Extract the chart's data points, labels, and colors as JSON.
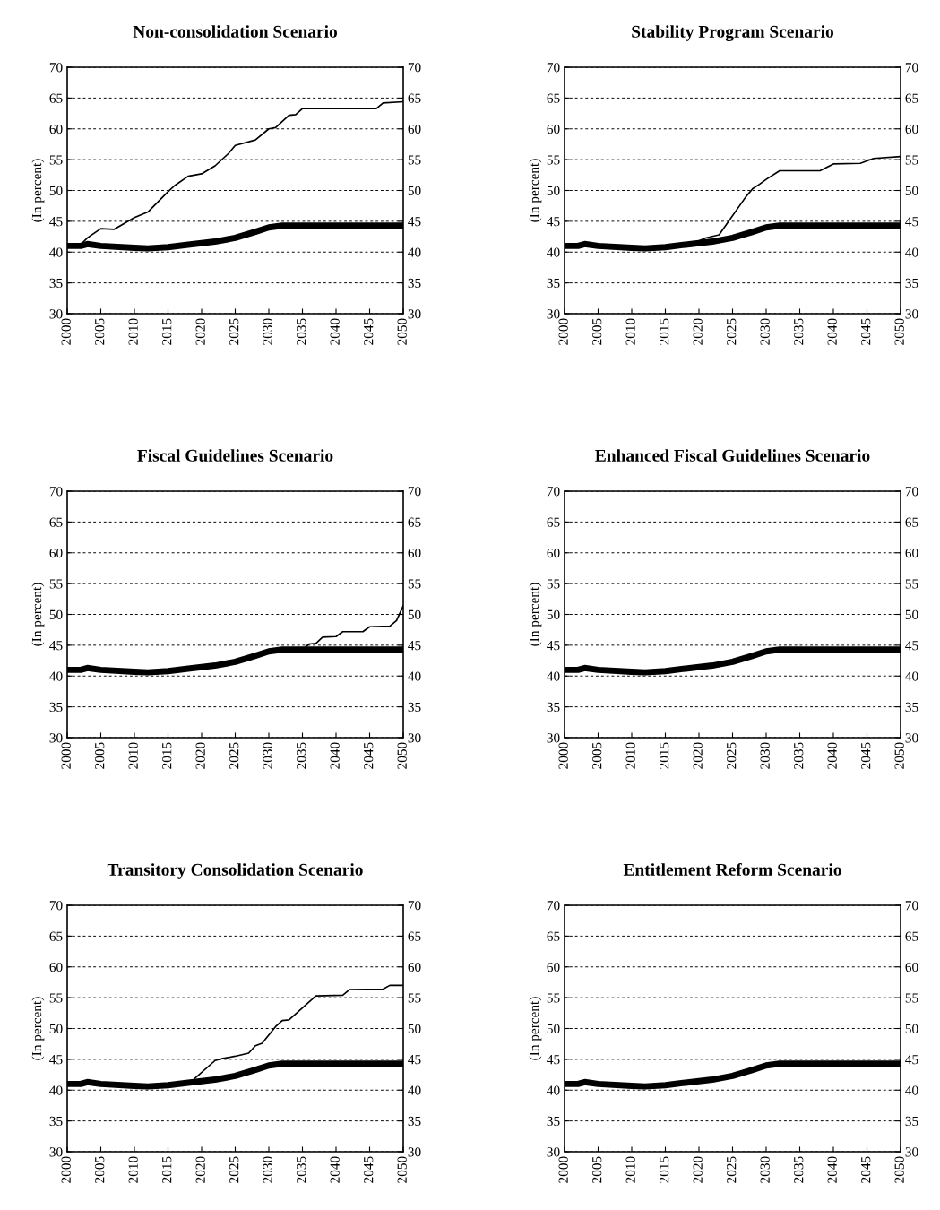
{
  "chart_data": [
    {
      "type": "line",
      "title": "Non-consolidation Scenario",
      "ylabel": "(In percent)",
      "xlim": [
        2000,
        2050
      ],
      "xticks": [
        2000,
        2005,
        2010,
        2015,
        2020,
        2025,
        2030,
        2035,
        2040,
        2045,
        2050
      ],
      "ylim": [
        30,
        70
      ],
      "yticks": [
        30,
        35,
        40,
        45,
        50,
        55,
        60,
        65,
        70
      ],
      "y2lim": [
        30,
        70
      ],
      "y2ticks": [
        30,
        35,
        40,
        45,
        50,
        55,
        60,
        65,
        70
      ],
      "grid": "y",
      "series": [
        {
          "color": "#000000",
          "x": [
            2000,
            2002,
            2003,
            2005,
            2010,
            2012,
            2015,
            2018,
            2022,
            2025,
            2028,
            2030,
            2032,
            2050
          ],
          "values": [
            41,
            41,
            41.3,
            41,
            40.7,
            40.6,
            40.8,
            41.2,
            41.7,
            42.3,
            43.3,
            44,
            44.3,
            44.3
          ]
        },
        {
          "color": "#000000",
          "x": [
            2000,
            2002,
            2003,
            2005,
            2007,
            2010,
            2012,
            2015,
            2016,
            2018,
            2020,
            2022,
            2024,
            2025,
            2028,
            2030,
            2031,
            2033,
            2034,
            2035,
            2046,
            2047,
            2050
          ],
          "values": [
            41,
            41.2,
            42.3,
            43.8,
            43.7,
            45.6,
            46.5,
            49.8,
            50.8,
            52.3,
            52.7,
            54,
            56,
            57.3,
            58.2,
            60,
            60.2,
            62.2,
            62.3,
            63.3,
            63.3,
            64.2,
            64.4
          ]
        }
      ]
    },
    {
      "type": "line",
      "title": "Stability Program Scenario",
      "ylabel": "(In percent)",
      "xlim": [
        2000,
        2050
      ],
      "xticks": [
        2000,
        2005,
        2010,
        2015,
        2020,
        2025,
        2030,
        2035,
        2040,
        2045,
        2050
      ],
      "ylim": [
        30,
        70
      ],
      "yticks": [
        30,
        35,
        40,
        45,
        50,
        55,
        60,
        65,
        70
      ],
      "y2lim": [
        30,
        70
      ],
      "y2ticks": [
        30,
        35,
        40,
        45,
        50,
        55,
        60,
        65,
        70
      ],
      "grid": "y",
      "series": [
        {
          "color": "#000000",
          "x": [
            2000,
            2002,
            2003,
            2005,
            2010,
            2012,
            2015,
            2018,
            2022,
            2025,
            2028,
            2030,
            2032,
            2050
          ],
          "values": [
            41,
            41,
            41.3,
            41,
            40.7,
            40.6,
            40.8,
            41.2,
            41.7,
            42.3,
            43.3,
            44,
            44.3,
            44.3
          ]
        },
        {
          "color": "#000000",
          "x": [
            2020,
            2021,
            2023,
            2027,
            2028,
            2029,
            2030,
            2032,
            2038,
            2040,
            2044,
            2046,
            2050
          ],
          "values": [
            41.8,
            42.3,
            42.8,
            49,
            50.3,
            51,
            51.8,
            53.2,
            53.2,
            54.3,
            54.4,
            55.2,
            55.5
          ]
        }
      ]
    },
    {
      "type": "line",
      "title": "Fiscal Guidelines Scenario",
      "ylabel": "(In percent)",
      "xlim": [
        2000,
        2050
      ],
      "xticks": [
        2000,
        2005,
        2010,
        2015,
        2020,
        2025,
        2030,
        2035,
        2040,
        2045,
        2050
      ],
      "ylim": [
        30,
        70
      ],
      "yticks": [
        30,
        35,
        40,
        45,
        50,
        55,
        60,
        65,
        70
      ],
      "y2lim": [
        30,
        70
      ],
      "y2ticks": [
        30,
        35,
        40,
        45,
        50,
        55,
        60,
        65,
        70
      ],
      "grid": "y",
      "series": [
        {
          "color": "#000000",
          "x": [
            2000,
            2002,
            2003,
            2005,
            2010,
            2012,
            2015,
            2018,
            2022,
            2025,
            2028,
            2030,
            2032,
            2050
          ],
          "values": [
            41,
            41,
            41.3,
            41,
            40.7,
            40.6,
            40.8,
            41.2,
            41.7,
            42.3,
            43.3,
            44,
            44.3,
            44.3
          ]
        },
        {
          "color": "#000000",
          "x": [
            2035,
            2036,
            2037,
            2038,
            2040,
            2041,
            2044,
            2045,
            2048,
            2049,
            2050
          ],
          "values": [
            44.3,
            45.2,
            45.3,
            46.3,
            46.4,
            47.2,
            47.2,
            48,
            48.1,
            49,
            51.4
          ]
        }
      ]
    },
    {
      "type": "line",
      "title": "Enhanced Fiscal Guidelines Scenario",
      "ylabel": "(In percent)",
      "xlim": [
        2000,
        2050
      ],
      "xticks": [
        2000,
        2005,
        2010,
        2015,
        2020,
        2025,
        2030,
        2035,
        2040,
        2045,
        2050
      ],
      "ylim": [
        30,
        70
      ],
      "yticks": [
        30,
        35,
        40,
        45,
        50,
        55,
        60,
        65,
        70
      ],
      "y2lim": [
        30,
        70
      ],
      "y2ticks": [
        30,
        35,
        40,
        45,
        50,
        55,
        60,
        65,
        70
      ],
      "grid": "y",
      "series": [
        {
          "color": "#000000",
          "x": [
            2000,
            2002,
            2003,
            2005,
            2010,
            2012,
            2015,
            2018,
            2022,
            2025,
            2028,
            2030,
            2032,
            2050
          ],
          "values": [
            41,
            41,
            41.3,
            41,
            40.7,
            40.6,
            40.8,
            41.2,
            41.7,
            42.3,
            43.3,
            44,
            44.3,
            44.3
          ]
        }
      ]
    },
    {
      "type": "line",
      "title": "Transitory Consolidation Scenario",
      "ylabel": "(In percent)",
      "xlim": [
        2000,
        2050
      ],
      "xticks": [
        2000,
        2005,
        2010,
        2015,
        2020,
        2025,
        2030,
        2035,
        2040,
        2045,
        2050
      ],
      "ylim": [
        30,
        70
      ],
      "yticks": [
        30,
        35,
        40,
        45,
        50,
        55,
        60,
        65,
        70
      ],
      "y2lim": [
        30,
        70
      ],
      "y2ticks": [
        30,
        35,
        40,
        45,
        50,
        55,
        60,
        65,
        70
      ],
      "grid": "y",
      "series": [
        {
          "color": "#000000",
          "x": [
            2000,
            2002,
            2003,
            2005,
            2010,
            2012,
            2015,
            2018,
            2022,
            2025,
            2028,
            2030,
            2032,
            2050
          ],
          "values": [
            41,
            41,
            41.3,
            41,
            40.7,
            40.6,
            40.8,
            41.2,
            41.7,
            42.3,
            43.3,
            44,
            44.3,
            44.3
          ]
        },
        {
          "color": "#000000",
          "x": [
            2019,
            2022,
            2023,
            2025,
            2027,
            2028,
            2029,
            2031,
            2032,
            2033,
            2037,
            2041,
            2042,
            2047,
            2048,
            2050
          ],
          "values": [
            41.9,
            44.8,
            45.1,
            45.5,
            46,
            47.2,
            47.6,
            50.3,
            51.3,
            51.4,
            55.3,
            55.4,
            56.3,
            56.4,
            57,
            57
          ]
        }
      ]
    },
    {
      "type": "line",
      "title": "Entitlement Reform Scenario",
      "ylabel": "(In percent)",
      "xlim": [
        2000,
        2050
      ],
      "xticks": [
        2000,
        2005,
        2010,
        2015,
        2020,
        2025,
        2030,
        2035,
        2040,
        2045,
        2050
      ],
      "ylim": [
        30,
        70
      ],
      "yticks": [
        30,
        35,
        40,
        45,
        50,
        55,
        60,
        65,
        70
      ],
      "y2lim": [
        30,
        70
      ],
      "y2ticks": [
        30,
        35,
        40,
        45,
        50,
        55,
        60,
        65,
        70
      ],
      "grid": "y",
      "series": [
        {
          "color": "#000000",
          "x": [
            2000,
            2002,
            2003,
            2005,
            2010,
            2012,
            2015,
            2018,
            2022,
            2025,
            2028,
            2030,
            2032,
            2050
          ],
          "values": [
            41,
            41,
            41.3,
            41,
            40.7,
            40.6,
            40.8,
            41.2,
            41.7,
            42.3,
            43.3,
            44,
            44.3,
            44.3
          ]
        }
      ]
    }
  ]
}
